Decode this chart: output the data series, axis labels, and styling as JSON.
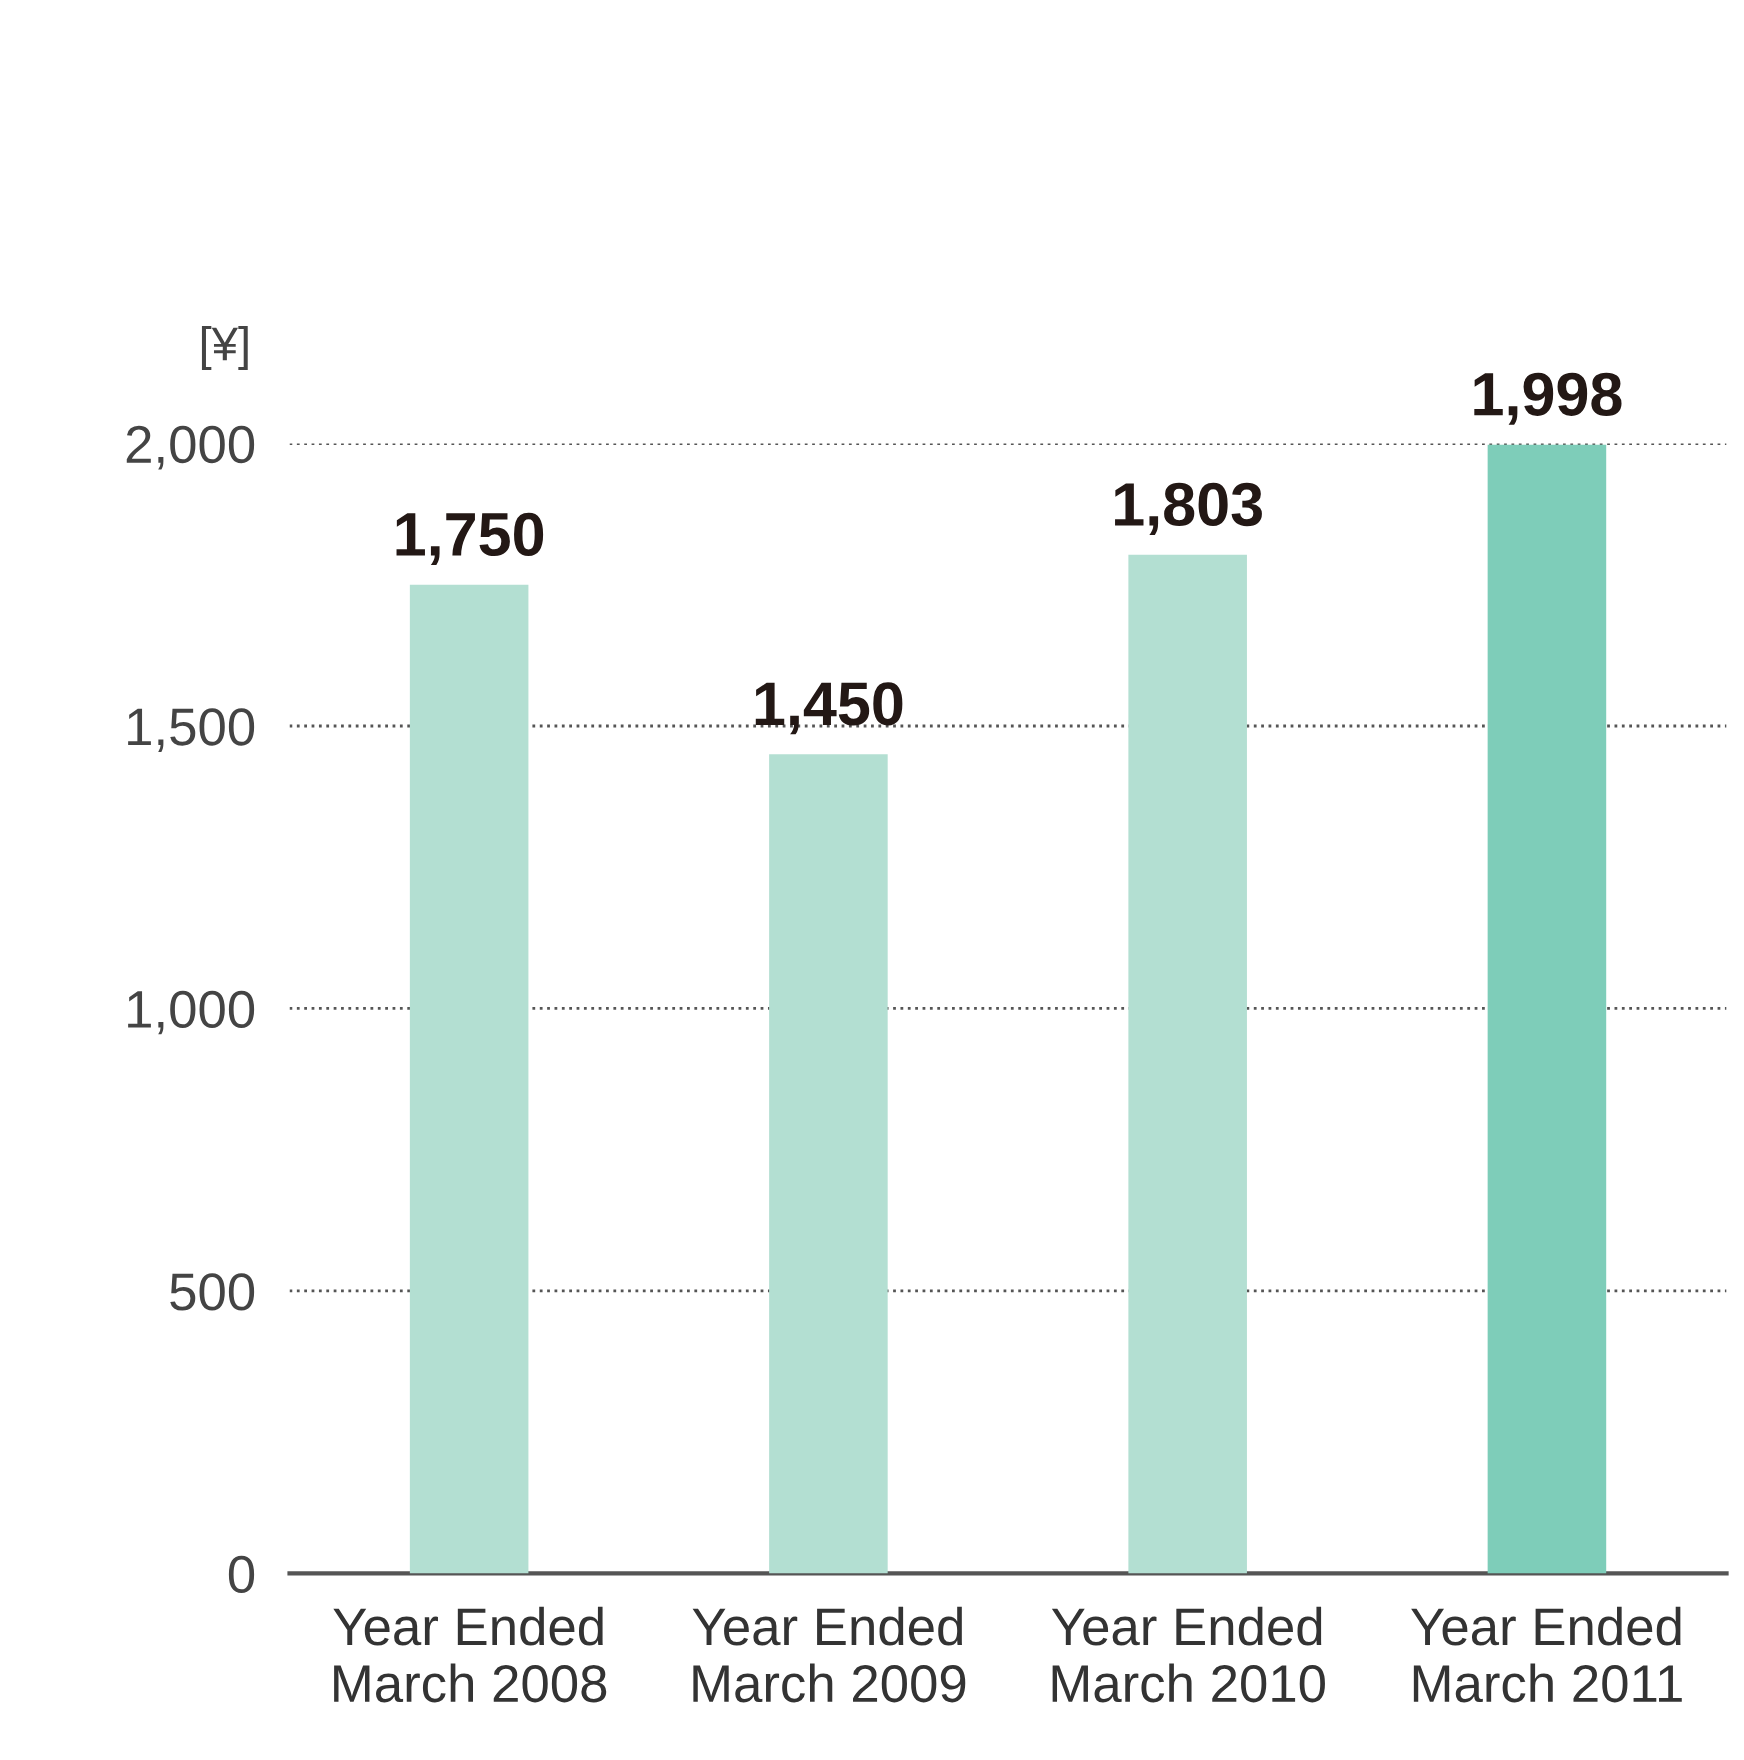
{
  "chart_data": {
    "type": "bar",
    "ylabel": "[¥]",
    "categories": [
      "Year Ended\nMarch 2008",
      "Year Ended\nMarch 2009",
      "Year Ended\nMarch 2010",
      "Year Ended\nMarch 2011"
    ],
    "values": [
      1750,
      1450,
      1803,
      1998
    ],
    "colors": [
      "#b3dfd2",
      "#b3dfd2",
      "#b3dfd2",
      "#7ecdb9"
    ],
    "ylim": [
      0,
      2000
    ],
    "yticks": [
      {
        "value": 0,
        "label": "0"
      },
      {
        "value": 500,
        "label": "500"
      },
      {
        "value": 1000,
        "label": "1,000"
      },
      {
        "value": 1500,
        "label": "1,500"
      },
      {
        "value": 2000,
        "label": "2,000"
      }
    ],
    "grid": "y",
    "value_labels": [
      "1,750",
      "1,450",
      "1,803",
      "1,998"
    ]
  }
}
